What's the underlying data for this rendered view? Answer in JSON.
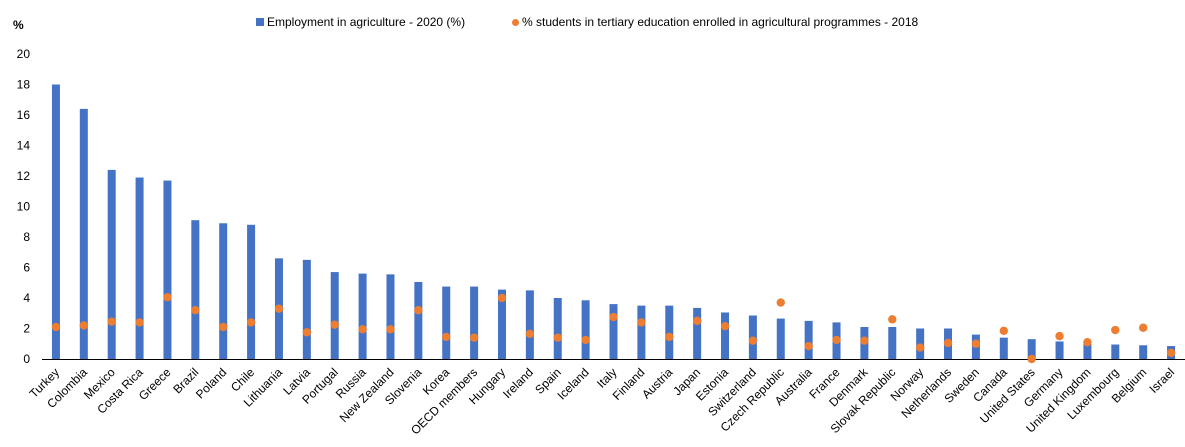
{
  "legend": {
    "bar_label": "Employment in agriculture - 2020 (%)",
    "dot_label": "% students in tertiary education enrolled in agricultural programmes - 2018"
  },
  "unit_label": "%",
  "colors": {
    "bar": "#4472C4",
    "dot": "#ED7D31",
    "grid": "#d9d9d9",
    "axis": "#000000"
  },
  "chart_data": {
    "type": "bar",
    "ylim": [
      0,
      20
    ],
    "yticks": [
      0,
      2,
      4,
      6,
      8,
      10,
      12,
      14,
      16,
      18,
      20
    ],
    "grid": false,
    "legend_position": "top",
    "categories": [
      "Turkey",
      "Colombia",
      "Mexico",
      "Costa Rica",
      "Greece",
      "Brazil",
      "Poland",
      "Chile",
      "Lithuania",
      "Latvia",
      "Portugal",
      "Russia",
      "New Zealand",
      "Slovenia",
      "Korea",
      "OECD members",
      "Hungary",
      "Ireland",
      "Spain",
      "Iceland",
      "Italy",
      "Finland",
      "Austria",
      "Japan",
      "Estonia",
      "Switzerland",
      "Czech Republic",
      "Australia",
      "France",
      "Denmark",
      "Slovak Republic",
      "Norway",
      "Netherlands",
      "Sweden",
      "Canada",
      "United States",
      "Germany",
      "United Kingdom",
      "Luxembourg",
      "Belgium",
      "Israel"
    ],
    "series": [
      {
        "name": "Employment in agriculture - 2020 (%)",
        "kind": "bar",
        "values": [
          18.0,
          16.4,
          12.4,
          11.9,
          11.7,
          9.1,
          8.9,
          8.8,
          6.6,
          6.5,
          5.7,
          5.6,
          5.55,
          5.05,
          4.75,
          4.75,
          4.55,
          4.5,
          4.0,
          3.85,
          3.6,
          3.5,
          3.5,
          3.35,
          3.05,
          2.85,
          2.65,
          2.5,
          2.4,
          2.1,
          2.1,
          2.0,
          2.0,
          1.6,
          1.4,
          1.3,
          1.15,
          1.0,
          0.95,
          0.9,
          0.85
        ]
      },
      {
        "name": "% students in tertiary education enrolled in agricultural programmes - 2018",
        "kind": "dot",
        "values": [
          2.1,
          2.2,
          2.45,
          2.4,
          4.05,
          3.2,
          2.1,
          2.4,
          3.3,
          1.75,
          2.25,
          1.95,
          1.95,
          3.2,
          1.45,
          1.4,
          4.0,
          1.65,
          1.4,
          1.25,
          2.75,
          2.4,
          1.45,
          2.5,
          2.15,
          1.2,
          3.7,
          0.85,
          1.25,
          1.2,
          2.6,
          0.75,
          1.05,
          1.0,
          1.85,
          0.0,
          1.5,
          1.1,
          1.9,
          2.05,
          0.4
        ]
      }
    ]
  }
}
